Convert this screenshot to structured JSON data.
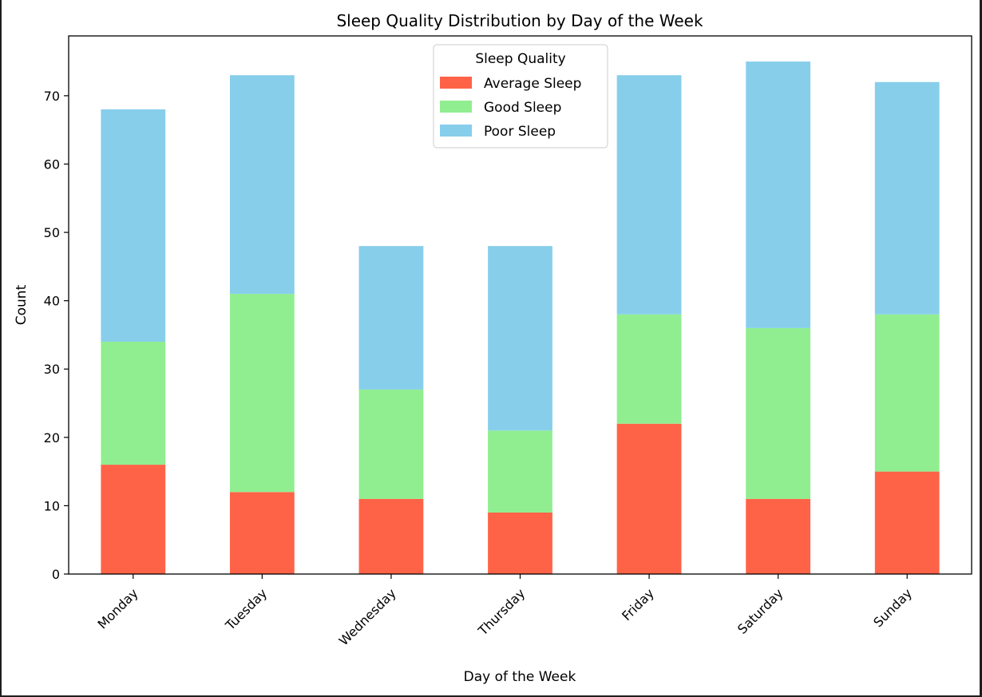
{
  "chart_data": {
    "type": "bar",
    "stacked": true,
    "title": "Sleep Quality Distribution by Day of the Week",
    "xlabel": "Day of the Week",
    "ylabel": "Count",
    "categories": [
      "Monday",
      "Tuesday",
      "Wednesday",
      "Thursday",
      "Friday",
      "Saturday",
      "Sunday"
    ],
    "series": [
      {
        "name": "Average Sleep",
        "color": "#ff6347",
        "values": [
          16,
          12,
          11,
          9,
          22,
          11,
          15
        ]
      },
      {
        "name": "Good Sleep",
        "color": "#90ee90",
        "values": [
          18,
          29,
          16,
          12,
          16,
          25,
          23
        ]
      },
      {
        "name": "Poor Sleep",
        "color": "#87ceeb",
        "values": [
          34,
          32,
          21,
          27,
          35,
          39,
          34
        ]
      }
    ],
    "ylim": [
      0,
      78.75
    ],
    "yticks": [
      0,
      10,
      20,
      30,
      40,
      50,
      60,
      70
    ],
    "xtick_rotation": 45,
    "grid": false,
    "legend": {
      "title": "Sleep Quality",
      "placement": "upper center"
    }
  }
}
